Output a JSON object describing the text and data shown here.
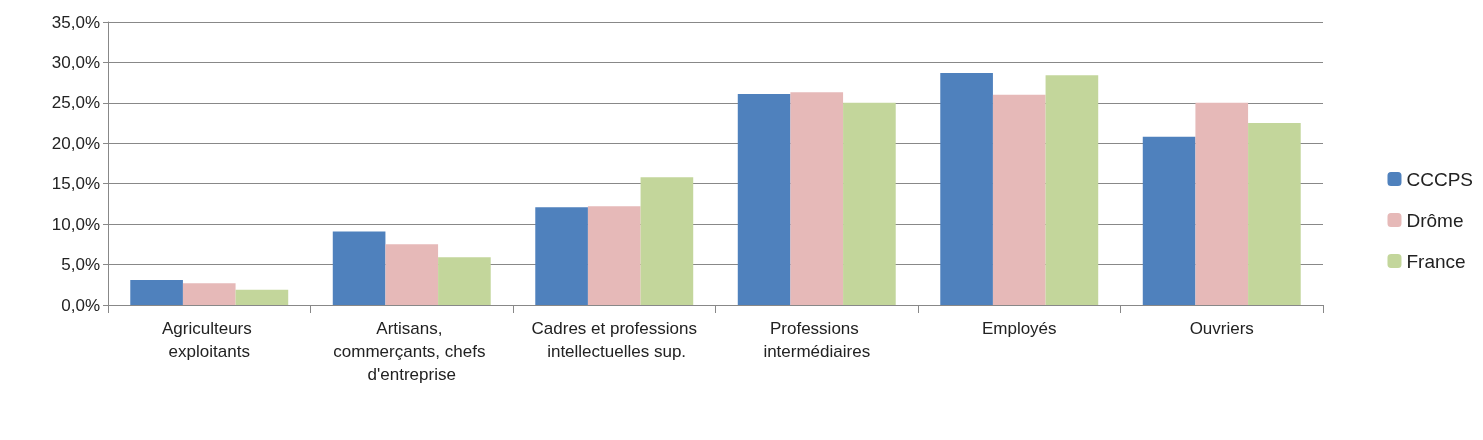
{
  "chart_data": {
    "type": "bar",
    "categories": [
      "Agriculteurs exploitants",
      "Artisans, commerçants, chefs d'entreprise",
      "Cadres et professions intellectuelles sup.",
      "Professions intermédiaires",
      "Employés",
      "Ouvriers"
    ],
    "series": [
      {
        "name": "CCCPS",
        "color": "#4f81bd",
        "values": [
          3.1,
          9.1,
          12.1,
          26.1,
          28.7,
          20.8
        ]
      },
      {
        "name": "Drôme",
        "color": "#e6b9b8",
        "values": [
          2.7,
          7.5,
          12.2,
          26.3,
          26.0,
          25.0
        ]
      },
      {
        "name": "France",
        "color": "#c3d69b",
        "values": [
          1.9,
          5.9,
          15.8,
          25.0,
          28.4,
          22.5
        ]
      }
    ],
    "ylim": [
      0,
      35
    ],
    "yticks": [
      {
        "value": 0,
        "label": "0,0%"
      },
      {
        "value": 5,
        "label": "5,0%"
      },
      {
        "value": 10,
        "label": "10,0%"
      },
      {
        "value": 15,
        "label": "15,0%"
      },
      {
        "value": 20,
        "label": "20,0%"
      },
      {
        "value": 25,
        "label": "25,0%"
      },
      {
        "value": 30,
        "label": "30,0%"
      },
      {
        "value": 35,
        "label": "35,0%"
      }
    ],
    "grid": "y",
    "legend": "right"
  }
}
